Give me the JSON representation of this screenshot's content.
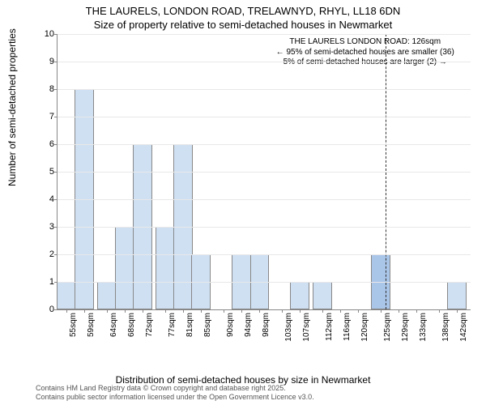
{
  "title_line1": "THE LAURELS, LONDON ROAD, TRELAWNYD, RHYL, LL18 6DN",
  "title_line2": "Size of property relative to semi-detached houses in Newmarket",
  "y_axis_label": "Number of semi-detached properties",
  "x_axis_label": "Distribution of semi-detached houses by size in Newmarket",
  "footnote_line1": "Contains HM Land Registry data © Crown copyright and database right 2025.",
  "footnote_line2": "Contains public sector information licensed under the Open Government Licence v3.0.",
  "annotation_line1": "THE LAURELS LONDON ROAD: 126sqm",
  "annotation_line2": "← 95% of semi-detached houses are smaller (36)",
  "annotation_line3": "5% of semi-detached houses are larger (2) →",
  "chart": {
    "type": "histogram",
    "x_min": 53,
    "x_max": 145,
    "y_min": 0,
    "y_max": 10,
    "y_tick_step": 1,
    "x_ticks": [
      55,
      59,
      64,
      68,
      72,
      77,
      81,
      85,
      90,
      94,
      98,
      103,
      107,
      112,
      116,
      120,
      125,
      129,
      133,
      138,
      142
    ],
    "bin_width": 4.3,
    "bar_fill": "#cfe0f3",
    "bar_border": "#888888",
    "highlight_fill": "#a9c5e8",
    "grid_color": "#e8e8e8",
    "marker_x": 126,
    "bars": [
      {
        "x": 55,
        "y": 1
      },
      {
        "x": 59,
        "y": 8
      },
      {
        "x": 64,
        "y": 1
      },
      {
        "x": 68,
        "y": 3
      },
      {
        "x": 72,
        "y": 6
      },
      {
        "x": 77,
        "y": 3
      },
      {
        "x": 81,
        "y": 6
      },
      {
        "x": 85,
        "y": 2
      },
      {
        "x": 94,
        "y": 2
      },
      {
        "x": 98,
        "y": 2
      },
      {
        "x": 107,
        "y": 1
      },
      {
        "x": 112,
        "y": 1
      },
      {
        "x": 125,
        "y": 2,
        "highlight": true
      },
      {
        "x": 142,
        "y": 1
      }
    ]
  }
}
